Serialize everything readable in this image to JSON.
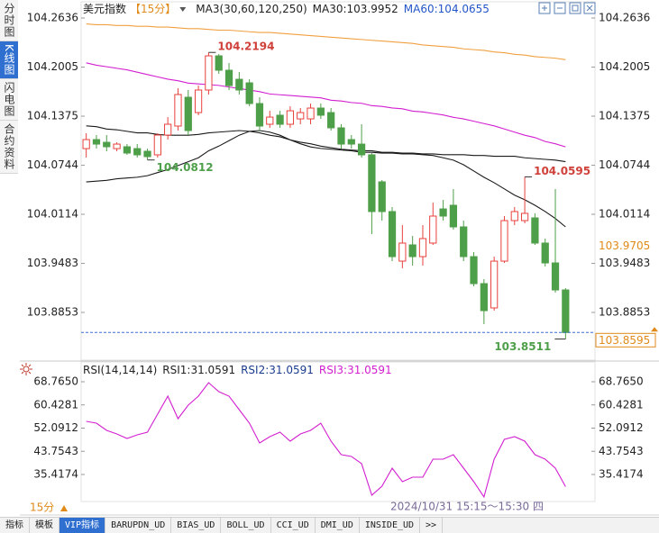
{
  "sidebar": [
    "分时图",
    "K线图",
    "闪电图",
    "合约资料"
  ],
  "header": {
    "name": "美元指数",
    "period": "【15分】",
    "legend": [
      {
        "text": "MA3(30,60,120,250)",
        "color": "#222222"
      },
      {
        "text": "MA30:103.9952",
        "color": "#222222"
      },
      {
        "text": "MA60:104.0655",
        "color": "#2356c8"
      }
    ]
  },
  "chart_data": [
    {
      "type": "candlestick",
      "up_color": "#e8413c",
      "down_color": "#4e9f49",
      "open": [
        104.0958,
        104.1074,
        104.1039,
        104.0958,
        104.0982,
        104.0958,
        104.0924,
        104.0878,
        104.1132,
        104.1248,
        104.1618,
        104.1421,
        104.1711,
        104.215,
        104.1965,
        104.1849,
        104.1803,
        104.1537,
        104.1271,
        104.1387,
        104.1271,
        104.134,
        104.134,
        104.1479,
        104.1421,
        104.1225,
        104.1074,
        104.1016,
        104.0878,
        104.0531,
        104.0149,
        103.9512,
        103.9721,
        103.957,
        103.9744,
        104.0183,
        104.023,
        103.9952,
        103.957,
        103.9223,
        103.8911,
        103.9512,
        104.0033,
        104.0033,
        104.0068,
        103.9744,
        103.9489,
        103.9142
      ],
      "close": [
        104.1074,
        104.1016,
        104.0982,
        104.1016,
        104.0901,
        104.0878,
        104.0855,
        104.1132,
        104.1271,
        104.1653,
        104.119,
        104.1711,
        104.215,
        104.1965,
        104.1768,
        104.1711,
        104.1537,
        104.1248,
        104.1363,
        104.1271,
        104.1444,
        104.1421,
        104.1479,
        104.1387,
        104.1225,
        104.1016,
        104.1016,
        104.0878,
        104.0149,
        104.0149,
        103.957,
        103.9744,
        103.957,
        103.9802,
        104.0091,
        104.0091,
        103.9952,
        103.957,
        103.9223,
        103.8876,
        103.9512,
        104.0033,
        104.0149,
        104.0126,
        103.9744,
        103.9489,
        103.9142,
        103.8595
      ],
      "high": [
        104.1155,
        104.1132,
        104.1132,
        104.1039,
        104.1016,
        104.1016,
        104.0958,
        104.1155,
        104.1363,
        104.1734,
        104.1711,
        104.1768,
        104.2194,
        104.2173,
        104.2058,
        104.1942,
        104.1849,
        104.1618,
        104.1444,
        104.1444,
        104.1502,
        104.1479,
        104.1537,
        104.1537,
        104.1479,
        104.1271,
        104.1132,
        104.1271,
        104.0901,
        104.0554,
        104.0207,
        103.9975,
        103.9836,
        103.9975,
        104.0264,
        104.0299,
        104.0438,
        104.0033,
        103.9628,
        103.9281,
        103.957,
        104.0091,
        104.0207,
        104.0595,
        104.0126,
        103.9802,
        104.0438,
        103.9165
      ],
      "low": [
        104.0843,
        104.0958,
        104.0924,
        104.0924,
        104.0878,
        104.0843,
        104.0812,
        104.0843,
        104.1074,
        104.119,
        104.1132,
        104.1387,
        104.1653,
        104.1919,
        104.1711,
        104.1653,
        104.1502,
        104.119,
        104.1225,
        104.1225,
        104.1225,
        104.1271,
        104.1271,
        104.134,
        104.119,
        104.0958,
        104.0958,
        104.0843,
        103.9859,
        104.0033,
        103.9512,
        103.942,
        103.9455,
        103.9455,
        103.9721,
        104.0033,
        103.9917,
        103.9512,
        103.9189,
        103.8703,
        103.8876,
        103.9489,
        103.9975,
        103.9998,
        103.9721,
        103.9443,
        103.9107,
        103.8511
      ],
      "series": [
        {
          "color": "#f0a040",
          "values": [
            104.256,
            104.255,
            104.255,
            104.254,
            104.254,
            104.253,
            104.253,
            104.252,
            104.252,
            104.251,
            104.25,
            104.25,
            104.249,
            104.248,
            104.248,
            104.247,
            104.246,
            104.245,
            104.245,
            104.244,
            104.243,
            104.242,
            104.241,
            104.24,
            104.239,
            104.238,
            104.237,
            104.236,
            104.235,
            104.234,
            104.233,
            104.232,
            104.231,
            104.229,
            104.228,
            104.227,
            104.226,
            104.224,
            104.223,
            104.222,
            104.22,
            104.219,
            104.217,
            104.216,
            104.214,
            104.213,
            104.212,
            104.21
          ]
        },
        {
          "color": "#d21fd0",
          "values": [
            104.206,
            104.203,
            104.201,
            104.199,
            104.197,
            104.194,
            104.191,
            104.188,
            104.185,
            104.183,
            104.18,
            104.179,
            104.178,
            104.177,
            104.175,
            104.173,
            104.171,
            104.169,
            104.166,
            104.165,
            104.164,
            104.163,
            104.162,
            104.161,
            104.158,
            104.157,
            104.155,
            104.154,
            104.151,
            104.15,
            104.148,
            104.147,
            104.144,
            104.143,
            104.141,
            104.139,
            104.136,
            104.134,
            104.131,
            104.128,
            104.125,
            104.121,
            104.117,
            104.113,
            104.11,
            104.105,
            104.102,
            104.098
          ]
        },
        {
          "color": "#1a1a1a",
          "values": [
            104.125,
            104.124,
            104.121,
            104.12,
            104.118,
            104.116,
            104.116,
            104.114,
            104.113,
            104.113,
            104.113,
            104.114,
            104.116,
            104.117,
            104.118,
            104.119,
            104.118,
            104.116,
            104.113,
            104.111,
            104.107,
            104.104,
            104.102,
            104.099,
            104.097,
            104.095,
            104.094,
            104.093,
            104.093,
            104.091,
            104.091,
            104.09,
            104.09,
            104.089,
            104.089,
            104.088,
            104.088,
            104.088,
            104.087,
            104.087,
            104.086,
            104.086,
            104.086,
            104.084,
            104.083,
            104.082,
            104.081,
            104.079
          ]
        },
        {
          "color": "#1a1a1a",
          "values": [
            104.053,
            104.054,
            104.055,
            104.057,
            104.058,
            104.059,
            104.061,
            104.065,
            104.069,
            104.074,
            104.079,
            104.084,
            104.093,
            104.099,
            104.106,
            104.113,
            104.118,
            104.119,
            104.117,
            104.113,
            104.107,
            104.102,
            104.098,
            104.096,
            104.095,
            104.094,
            104.093,
            104.091,
            104.091,
            104.09,
            104.09,
            104.089,
            104.089,
            104.088,
            104.087,
            104.084,
            104.081,
            104.075,
            104.067,
            104.059,
            104.052,
            104.044,
            104.036,
            104.03,
            104.023,
            104.015,
            104.006,
            103.9952
          ]
        }
      ],
      "annotations": [
        104.2194,
        104.0812,
        104.0595,
        103.8511
      ],
      "last_price": 103.8595,
      "reference_price": 103.9705,
      "ylim": [
        103.8263,
        104.2752
      ],
      "yticks": [
        104.2636,
        104.2005,
        104.1375,
        104.0744,
        104.0114,
        103.9483,
        103.8853
      ]
    },
    {
      "type": "line",
      "title": "RSI(14,14,14)",
      "legend": [
        {
          "text": "RSI1:31.0591",
          "color": "#222222"
        },
        {
          "text": "RSI2:31.0591",
          "color": "#1a3c8f"
        },
        {
          "text": "RSI3:31.0591",
          "color": "#d21fd0"
        }
      ],
      "color": "#d21fd0",
      "values": [
        54.52,
        53.87,
        51.28,
        49.99,
        48.37,
        49.66,
        50.64,
        57.11,
        63.58,
        55.49,
        60.35,
        63.58,
        68.44,
        65.2,
        63.58,
        58.73,
        53.87,
        46.75,
        49.02,
        50.64,
        47.4,
        49.99,
        51.28,
        53.87,
        47.4,
        42.54,
        41.9,
        39.31,
        27.97,
        31.21,
        37.69,
        32.83,
        34.45,
        34.45,
        40.92,
        40.92,
        42.54,
        37.69,
        32.83,
        27.33,
        40.92,
        48.05,
        49.02,
        47.4,
        42.54,
        40.92,
        37.69,
        31.0591
      ],
      "ylim": [
        26.355,
        70.707
      ],
      "yticks": [
        {
          "value": 68.765,
          "label": "68.7650"
        },
        60.4281,
        52.0912,
        43.7543,
        35.4174
      ]
    }
  ],
  "crosshair_label": "2024/10/31 15:15～15:30 四",
  "period_button": "15分",
  "toolbar": [
    "指标",
    "模板",
    "VIP指标",
    "BARUPDN_UD",
    "BIAS_UD",
    "BOLL_UD",
    "CCI_UD",
    "DMI_UD",
    "INSIDE_UD",
    ">>"
  ]
}
